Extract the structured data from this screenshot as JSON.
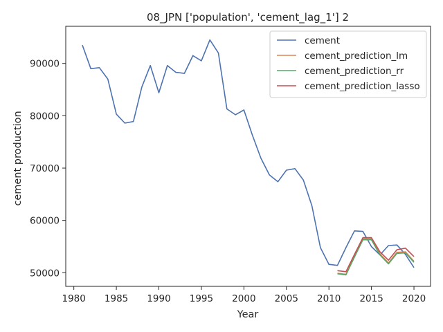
{
  "chart_data": {
    "type": "line",
    "title": "08_JPN ['population', 'cement_lag_1'] 2",
    "xlabel": "Year",
    "ylabel": "cement production",
    "xlim": [
      1979.05,
      2021.95
    ],
    "ylim": [
      47400,
      97100
    ],
    "xticks": [
      1980,
      1985,
      1990,
      1995,
      2000,
      2005,
      2010,
      2015,
      2020
    ],
    "yticks": [
      50000,
      60000,
      70000,
      80000,
      90000
    ],
    "grid": false,
    "legend_position": "top-right",
    "series": [
      {
        "name": "cement",
        "color": "#4c72b0",
        "x": [
          1981,
          1982,
          1983,
          1984,
          1985,
          1986,
          1987,
          1988,
          1989,
          1990,
          1991,
          1992,
          1993,
          1994,
          1995,
          1996,
          1997,
          1998,
          1999,
          2000,
          2001,
          2002,
          2003,
          2004,
          2005,
          2006,
          2007,
          2008,
          2009,
          2010,
          2011,
          2012,
          2013,
          2014,
          2015,
          2016,
          2017,
          2018,
          2019,
          2020
        ],
        "y": [
          93500,
          89000,
          89200,
          87000,
          80300,
          78600,
          78900,
          85500,
          89600,
          84400,
          89600,
          88300,
          88100,
          91500,
          90500,
          94500,
          92000,
          81300,
          80200,
          81100,
          76300,
          71900,
          68700,
          67400,
          69600,
          69900,
          67700,
          62800,
          54800,
          51600,
          51400,
          54800,
          58000,
          57900,
          55000,
          53400,
          55200,
          55300,
          53500,
          51000
        ]
      },
      {
        "name": "cement_prediction_lm",
        "color": "#dd8452",
        "x": [
          2011,
          2012,
          2013,
          2014,
          2015,
          2016,
          2017,
          2018,
          2019,
          2020
        ],
        "y": [
          49900,
          49700,
          53200,
          56500,
          56500,
          53600,
          51900,
          53900,
          54000,
          52200
        ]
      },
      {
        "name": "cement_prediction_rr",
        "color": "#55a868",
        "x": [
          2011,
          2012,
          2013,
          2014,
          2015,
          2016,
          2017,
          2018,
          2019,
          2020
        ],
        "y": [
          49800,
          49600,
          53000,
          56300,
          56300,
          53400,
          51700,
          53700,
          53800,
          52000
        ]
      },
      {
        "name": "cement_prediction_lasso",
        "color": "#c44e52",
        "x": [
          2011,
          2012,
          2013,
          2014,
          2015,
          2016,
          2017,
          2018,
          2019,
          2020
        ],
        "y": [
          50400,
          50200,
          53500,
          56700,
          56700,
          54000,
          52400,
          54400,
          54700,
          53100
        ]
      }
    ]
  }
}
